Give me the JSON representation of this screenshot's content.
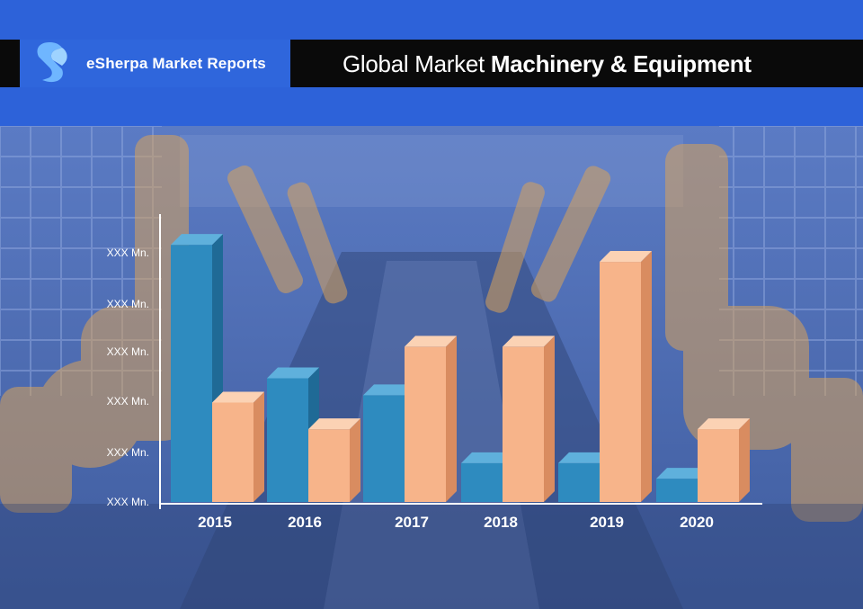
{
  "header": {
    "brand": "eSherpa Market Reports",
    "title_light": "Global Market",
    "title_bold": "Machinery & Equipment"
  },
  "colors": {
    "header_blue": "#2d62d9",
    "series_blue": "#2e8bbf",
    "series_orange": "#f7b48a"
  },
  "chart_data": {
    "type": "bar",
    "categories": [
      "2015",
      "2016",
      "2017",
      "2018",
      "2019",
      "2020"
    ],
    "series": [
      {
        "values": [
          5.3,
          2.55,
          2.2,
          0.8,
          0.8,
          0.48
        ]
      },
      {
        "values": [
          2.05,
          1.5,
          3.2,
          3.2,
          4.95,
          1.5
        ]
      }
    ],
    "ytick_labels": [
      "XXX Mn.",
      "XXX Mn.",
      "XXX Mn.",
      "XXX Mn.",
      "XXX Mn.",
      "XXX Mn."
    ],
    "ylim": [
      0,
      5.6
    ],
    "grid": false
  }
}
